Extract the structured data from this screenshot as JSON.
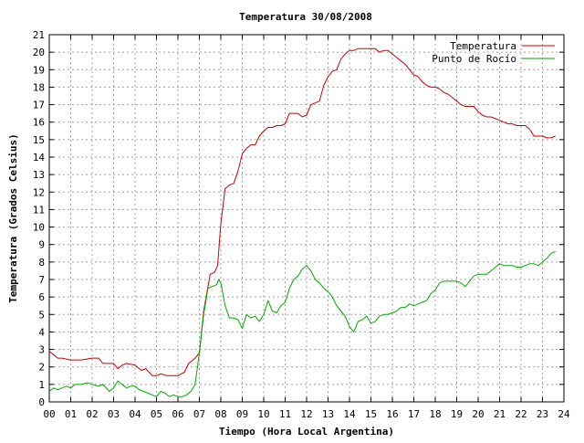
{
  "chart_data": {
    "type": "line",
    "title": "Temperatura 30/08/2008",
    "xlabel": "Tiempo (Hora Local Argentina)",
    "ylabel": "Temperatura (Grados Celsius)",
    "xlim": [
      0,
      24
    ],
    "ylim": [
      0,
      21
    ],
    "x_ticks": [
      "00",
      "01",
      "02",
      "03",
      "04",
      "05",
      "06",
      "07",
      "08",
      "09",
      "10",
      "11",
      "12",
      "13",
      "14",
      "15",
      "16",
      "17",
      "18",
      "19",
      "20",
      "21",
      "22",
      "23",
      "24"
    ],
    "y_ticks": [
      "0",
      "1",
      "2",
      "3",
      "4",
      "5",
      "6",
      "7",
      "8",
      "9",
      "10",
      "11",
      "12",
      "13",
      "14",
      "15",
      "16",
      "17",
      "18",
      "19",
      "20",
      "21"
    ],
    "grid": true,
    "legend_position": "top-right",
    "series": [
      {
        "name": "Temperatura",
        "color": "#cc0000",
        "x": [
          0,
          0.2,
          0.4,
          0.6,
          1,
          1.5,
          2,
          2.3,
          2.5,
          3,
          3.2,
          3.4,
          3.6,
          4,
          4.3,
          4.5,
          4.8,
          5,
          5.2,
          5.5,
          6,
          6.3,
          6.5,
          6.8,
          7,
          7.2,
          7.5,
          7.7,
          7.85,
          8,
          8.2,
          8.4,
          8.6,
          8.8,
          9,
          9.2,
          9.4,
          9.6,
          9.8,
          10,
          10.2,
          10.4,
          10.6,
          10.8,
          11,
          11.2,
          11.4,
          11.6,
          11.8,
          12,
          12.2,
          12.4,
          12.6,
          12.8,
          13,
          13.2,
          13.4,
          13.6,
          13.8,
          14,
          14.2,
          14.4,
          14.6,
          14.8,
          15,
          15.2,
          15.4,
          15.6,
          15.8,
          16,
          16.2,
          16.4,
          16.6,
          16.8,
          17,
          17.2,
          17.4,
          17.6,
          17.8,
          18,
          18.2,
          18.4,
          18.6,
          18.8,
          19,
          19.2,
          19.4,
          19.6,
          19.8,
          20,
          20.2,
          20.4,
          20.6,
          20.8,
          21,
          21.2,
          21.4,
          21.6,
          21.8,
          22,
          22.2,
          22.4,
          22.6,
          22.8,
          23,
          23.2,
          23.4,
          23.6
        ],
        "values": [
          2.9,
          2.7,
          2.5,
          2.5,
          2.4,
          2.4,
          2.5,
          2.5,
          2.2,
          2.2,
          1.9,
          2.1,
          2.2,
          2.1,
          1.8,
          1.9,
          1.5,
          1.5,
          1.6,
          1.5,
          1.5,
          1.7,
          2.2,
          2.5,
          2.8,
          5.2,
          7.3,
          7.4,
          7.8,
          10.2,
          12.2,
          12.4,
          12.5,
          13.2,
          14.2,
          14.5,
          14.7,
          14.7,
          15.2,
          15.5,
          15.7,
          15.7,
          15.8,
          15.8,
          15.9,
          16.5,
          16.5,
          16.5,
          16.3,
          16.4,
          17.0,
          17.1,
          17.2,
          18.1,
          18.6,
          18.9,
          19.0,
          19.6,
          19.9,
          20.1,
          20.1,
          20.2,
          20.2,
          20.2,
          20.2,
          20.2,
          20.0,
          20.1,
          20.1,
          19.9,
          19.7,
          19.5,
          19.3,
          19.0,
          18.7,
          18.6,
          18.3,
          18.1,
          18.0,
          18.0,
          17.9,
          17.7,
          17.6,
          17.4,
          17.2,
          17.0,
          16.9,
          16.9,
          16.9,
          16.6,
          16.4,
          16.3,
          16.3,
          16.2,
          16.1,
          16.0,
          15.9,
          15.9,
          15.8,
          15.8,
          15.8,
          15.6,
          15.2,
          15.2,
          15.2,
          15.1,
          15.1,
          15.2
        ]
      },
      {
        "name": "Punto de Rocío",
        "color": "#00aa00",
        "x": [
          0,
          0.2,
          0.4,
          0.6,
          0.8,
          1,
          1.2,
          1.5,
          1.8,
          2,
          2.3,
          2.5,
          2.8,
          3,
          3.2,
          3.4,
          3.6,
          3.8,
          4,
          4.2,
          4.4,
          4.6,
          4.8,
          5,
          5.2,
          5.4,
          5.6,
          5.8,
          6,
          6.2,
          6.4,
          6.6,
          6.8,
          7,
          7.2,
          7.4,
          7.6,
          7.8,
          7.9,
          8,
          8.2,
          8.4,
          8.6,
          8.8,
          9,
          9.2,
          9.4,
          9.6,
          9.8,
          10,
          10.2,
          10.4,
          10.6,
          10.8,
          11,
          11.2,
          11.4,
          11.6,
          11.8,
          12,
          12.2,
          12.4,
          12.6,
          12.8,
          13,
          13.2,
          13.4,
          13.6,
          13.8,
          14,
          14.2,
          14.4,
          14.6,
          14.8,
          15,
          15.2,
          15.4,
          15.6,
          15.8,
          16,
          16.2,
          16.4,
          16.6,
          16.8,
          17,
          17.2,
          17.4,
          17.6,
          17.8,
          18,
          18.2,
          18.4,
          18.6,
          18.8,
          19,
          19.2,
          19.4,
          19.6,
          19.8,
          20,
          20.2,
          20.4,
          20.6,
          20.8,
          21,
          21.2,
          21.4,
          21.6,
          21.8,
          22,
          22.2,
          22.4,
          22.6,
          22.8,
          23,
          23.2,
          23.4,
          23.6
        ],
        "values": [
          0.6,
          0.8,
          0.7,
          0.8,
          0.9,
          0.8,
          1.0,
          1.0,
          1.1,
          1.0,
          0.9,
          1.0,
          0.6,
          0.8,
          1.2,
          1.0,
          0.8,
          0.9,
          0.9,
          0.7,
          0.6,
          0.5,
          0.4,
          0.3,
          0.6,
          0.5,
          0.3,
          0.4,
          0.3,
          0.3,
          0.4,
          0.6,
          1.0,
          2.8,
          5.0,
          6.5,
          6.6,
          6.7,
          7.0,
          6.8,
          5.5,
          4.8,
          4.8,
          4.7,
          4.2,
          5.0,
          4.8,
          4.9,
          4.6,
          5.0,
          5.8,
          5.2,
          5.1,
          5.5,
          5.7,
          6.5,
          7.0,
          7.2,
          7.6,
          7.8,
          7.5,
          7.0,
          6.8,
          6.5,
          6.3,
          6.0,
          5.5,
          5.2,
          4.9,
          4.3,
          4.0,
          4.6,
          4.7,
          4.9,
          4.5,
          4.6,
          4.9,
          5.0,
          5.0,
          5.1,
          5.2,
          5.4,
          5.4,
          5.6,
          5.5,
          5.6,
          5.7,
          5.8,
          6.2,
          6.4,
          6.8,
          6.9,
          6.9,
          6.9,
          6.9,
          6.8,
          6.6,
          6.9,
          7.2,
          7.3,
          7.3,
          7.3,
          7.5,
          7.7,
          7.9,
          7.8,
          7.8,
          7.8,
          7.7,
          7.7,
          7.8,
          7.9,
          7.9,
          7.8,
          8.0,
          8.2,
          8.5,
          8.6
        ]
      }
    ]
  }
}
